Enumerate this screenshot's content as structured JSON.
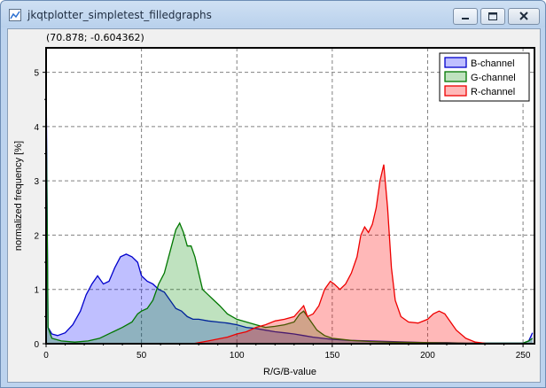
{
  "window": {
    "title": "jkqtplotter_simpletest_filledgraphs",
    "icon": "app-icon",
    "controls": [
      "minimize-icon",
      "maximize-icon",
      "close-icon"
    ]
  },
  "plot": {
    "coordinate_readout": "(70.878; -0.604362)"
  },
  "chart_data": {
    "type": "area",
    "xlabel": "R/G/B-value",
    "ylabel": "normalized frequency  [%]",
    "xlim": [
      0,
      256
    ],
    "ylim": [
      0,
      5.45
    ],
    "xticks": [
      0,
      50,
      100,
      150,
      200,
      250
    ],
    "yticks": [
      0,
      1,
      2,
      3,
      4,
      5
    ],
    "grid": true,
    "legend_position": "top-right",
    "series": [
      {
        "name": "B-channel",
        "color": "#0000cc",
        "fill": "rgba(0,0,255,0.25)",
        "points": [
          [
            0,
            5.0
          ],
          [
            1,
            0.3
          ],
          [
            3,
            0.18
          ],
          [
            6,
            0.15
          ],
          [
            10,
            0.2
          ],
          [
            14,
            0.35
          ],
          [
            18,
            0.6
          ],
          [
            21,
            0.9
          ],
          [
            24,
            1.1
          ],
          [
            27,
            1.25
          ],
          [
            30,
            1.1
          ],
          [
            33,
            1.15
          ],
          [
            36,
            1.4
          ],
          [
            39,
            1.6
          ],
          [
            42,
            1.65
          ],
          [
            45,
            1.6
          ],
          [
            48,
            1.5
          ],
          [
            50,
            1.25
          ],
          [
            53,
            1.15
          ],
          [
            56,
            1.1
          ],
          [
            59,
            1.0
          ],
          [
            62,
            0.95
          ],
          [
            65,
            0.8
          ],
          [
            68,
            0.65
          ],
          [
            71,
            0.6
          ],
          [
            74,
            0.5
          ],
          [
            77,
            0.45
          ],
          [
            80,
            0.45
          ],
          [
            85,
            0.42
          ],
          [
            90,
            0.4
          ],
          [
            95,
            0.38
          ],
          [
            100,
            0.35
          ],
          [
            105,
            0.3
          ],
          [
            110,
            0.28
          ],
          [
            115,
            0.25
          ],
          [
            120,
            0.22
          ],
          [
            125,
            0.2
          ],
          [
            130,
            0.18
          ],
          [
            135,
            0.15
          ],
          [
            140,
            0.12
          ],
          [
            145,
            0.1
          ],
          [
            150,
            0.08
          ],
          [
            160,
            0.06
          ],
          [
            170,
            0.05
          ],
          [
            180,
            0.04
          ],
          [
            190,
            0.03
          ],
          [
            200,
            0.02
          ],
          [
            210,
            0.02
          ],
          [
            220,
            0.01
          ],
          [
            230,
            0.01
          ],
          [
            240,
            0.01
          ],
          [
            250,
            0.01
          ],
          [
            253,
            0.05
          ],
          [
            255,
            0.2
          ]
        ]
      },
      {
        "name": "G-channel",
        "color": "#007700",
        "fill": "rgba(0,140,0,0.25)",
        "points": [
          [
            0,
            4.5
          ],
          [
            1,
            0.3
          ],
          [
            3,
            0.1
          ],
          [
            8,
            0.05
          ],
          [
            15,
            0.03
          ],
          [
            22,
            0.05
          ],
          [
            28,
            0.1
          ],
          [
            34,
            0.2
          ],
          [
            40,
            0.3
          ],
          [
            45,
            0.4
          ],
          [
            48,
            0.55
          ],
          [
            50,
            0.6
          ],
          [
            53,
            0.65
          ],
          [
            56,
            0.8
          ],
          [
            59,
            1.1
          ],
          [
            62,
            1.3
          ],
          [
            65,
            1.7
          ],
          [
            68,
            2.1
          ],
          [
            70,
            2.22
          ],
          [
            72,
            2.05
          ],
          [
            74,
            1.8
          ],
          [
            76,
            1.8
          ],
          [
            78,
            1.6
          ],
          [
            80,
            1.3
          ],
          [
            82,
            1.0
          ],
          [
            85,
            0.9
          ],
          [
            88,
            0.8
          ],
          [
            91,
            0.7
          ],
          [
            95,
            0.55
          ],
          [
            100,
            0.45
          ],
          [
            105,
            0.4
          ],
          [
            110,
            0.35
          ],
          [
            115,
            0.3
          ],
          [
            120,
            0.32
          ],
          [
            125,
            0.35
          ],
          [
            130,
            0.4
          ],
          [
            133,
            0.55
          ],
          [
            135,
            0.6
          ],
          [
            138,
            0.45
          ],
          [
            142,
            0.25
          ],
          [
            146,
            0.15
          ],
          [
            150,
            0.1
          ],
          [
            160,
            0.06
          ],
          [
            170,
            0.04
          ],
          [
            180,
            0.03
          ],
          [
            200,
            0.02
          ],
          [
            220,
            0.01
          ],
          [
            240,
            0.01
          ],
          [
            250,
            0.01
          ],
          [
            253,
            0.05
          ],
          [
            255,
            0.1
          ]
        ]
      },
      {
        "name": "R-channel",
        "color": "#ee0000",
        "fill": "rgba(255,0,0,0.28)",
        "points": [
          [
            77,
            0.0
          ],
          [
            85,
            0.05
          ],
          [
            95,
            0.12
          ],
          [
            100,
            0.18
          ],
          [
            105,
            0.22
          ],
          [
            110,
            0.3
          ],
          [
            115,
            0.35
          ],
          [
            120,
            0.42
          ],
          [
            125,
            0.45
          ],
          [
            130,
            0.5
          ],
          [
            133,
            0.62
          ],
          [
            135,
            0.7
          ],
          [
            137,
            0.5
          ],
          [
            140,
            0.55
          ],
          [
            143,
            0.7
          ],
          [
            146,
            1.0
          ],
          [
            149,
            1.15
          ],
          [
            151,
            1.1
          ],
          [
            154,
            1.0
          ],
          [
            157,
            1.1
          ],
          [
            160,
            1.3
          ],
          [
            163,
            1.6
          ],
          [
            165,
            2.0
          ],
          [
            167,
            2.15
          ],
          [
            169,
            2.05
          ],
          [
            171,
            2.2
          ],
          [
            173,
            2.5
          ],
          [
            175,
            3.0
          ],
          [
            177,
            3.3
          ],
          [
            179,
            2.5
          ],
          [
            181,
            1.4
          ],
          [
            183,
            0.8
          ],
          [
            186,
            0.5
          ],
          [
            190,
            0.4
          ],
          [
            195,
            0.38
          ],
          [
            200,
            0.45
          ],
          [
            203,
            0.55
          ],
          [
            206,
            0.6
          ],
          [
            209,
            0.55
          ],
          [
            212,
            0.4
          ],
          [
            215,
            0.25
          ],
          [
            220,
            0.1
          ],
          [
            225,
            0.03
          ],
          [
            232,
            0.0
          ]
        ]
      }
    ]
  }
}
